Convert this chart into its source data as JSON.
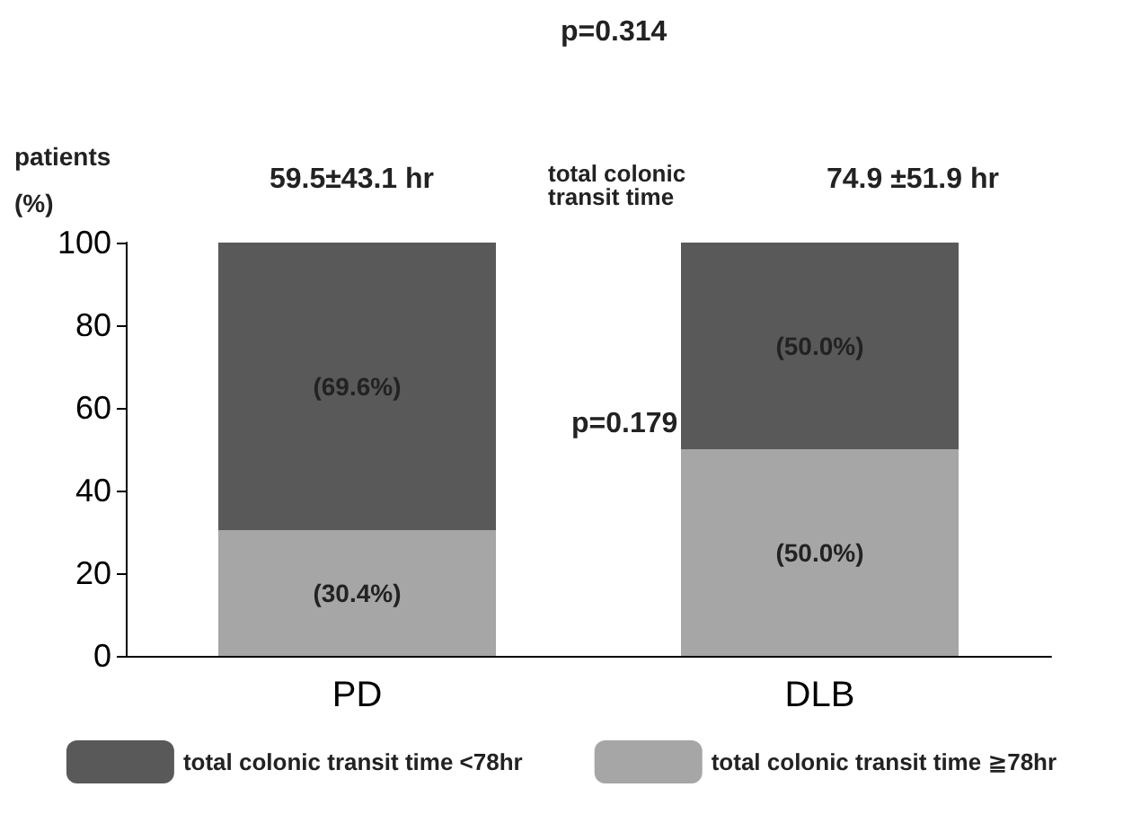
{
  "chart_data": {
    "type": "bar",
    "stacked": true,
    "ylabel": "patients\n(%)",
    "categories": [
      "PD",
      "DLB"
    ],
    "series": [
      {
        "name": "total colonic transit time ≧78hr",
        "color": "#a6a6a6",
        "values": [
          30.4,
          50.0
        ],
        "value_labels": [
          "(30.4%)",
          "(50.0%)"
        ]
      },
      {
        "name": "total colonic transit time <78hr",
        "color": "#595959",
        "values": [
          69.6,
          50.0
        ],
        "value_labels": [
          "(69.6%)",
          "(50.0%)"
        ]
      }
    ],
    "ylim": [
      0,
      100
    ],
    "yticks": [
      0,
      20,
      40,
      60,
      80,
      100
    ],
    "grid": false,
    "legend": "bottom",
    "annotations": [
      "p=0.314",
      "59.5±43.1 hr",
      "total colonic transit time",
      "74.9 ±51.9 hr",
      "p=0.179"
    ]
  }
}
